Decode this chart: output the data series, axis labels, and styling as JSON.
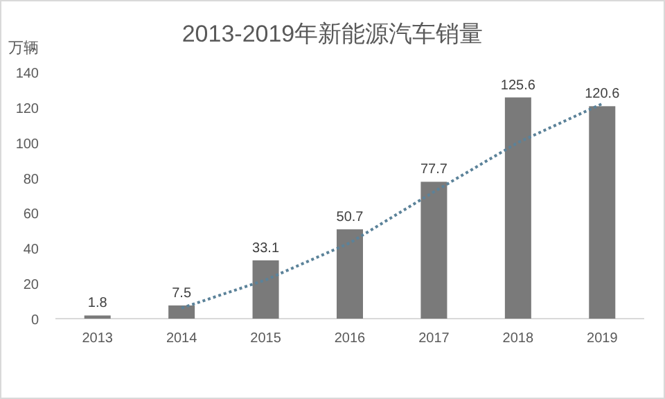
{
  "chart_data": {
    "type": "bar",
    "title": "2013-2019年新能源汽车销量",
    "ylabel": "万辆",
    "categories": [
      "2013",
      "2014",
      "2015",
      "2016",
      "2017",
      "2018",
      "2019"
    ],
    "series": [
      {
        "color": "#7a7a7a",
        "values": [
          1.8,
          7.5,
          33.1,
          50.7,
          77.7,
          125.6,
          120.6
        ],
        "value_labels": [
          "1.8",
          "7.5",
          "33.1",
          "50.7",
          "77.7",
          "125.6",
          "120.6"
        ]
      },
      {
        "type": "line",
        "color": "#5b8299",
        "line_style": "dotted",
        "values": [
          null,
          6,
          22,
          43,
          72,
          100,
          122
        ]
      }
    ],
    "ylim": [
      0,
      140
    ],
    "yticks": [
      0,
      20,
      40,
      60,
      80,
      100,
      120,
      140
    ]
  }
}
